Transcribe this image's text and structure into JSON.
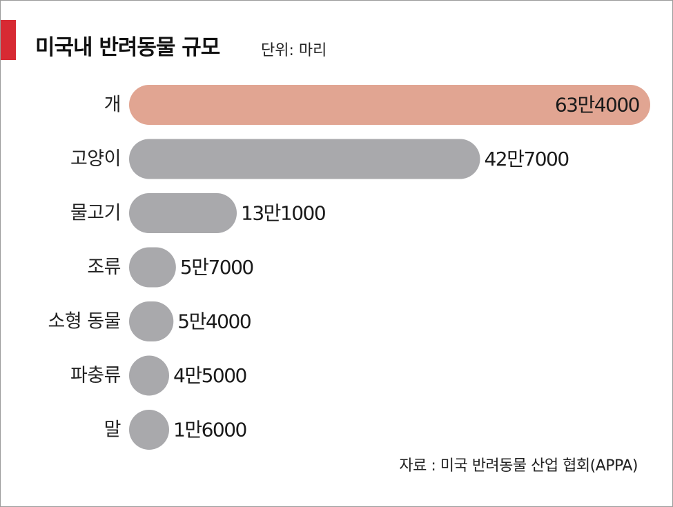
{
  "header": {
    "title": "미국내 반려동물 규모",
    "unit": "단위: 마리"
  },
  "source": "자료 : 미국 반려동물 산업 협회(APPA)",
  "colors": {
    "accent": "#d72a33",
    "highlight_bar": "#e1a592",
    "bar": "#a9a9ac"
  },
  "chart_data": {
    "type": "bar",
    "orientation": "horizontal",
    "title": "미국내 반려동물 규모",
    "unit": "단위: 마리",
    "categories": [
      "개",
      "고양이",
      "물고기",
      "조류",
      "소형 동물",
      "파충류",
      "말"
    ],
    "values": [
      634000,
      427000,
      131000,
      57000,
      54000,
      45000,
      16000
    ],
    "value_labels": [
      "63만4000",
      "42만7000",
      "13만1000",
      "5만7000",
      "5만4000",
      "4만5000",
      "1만6000"
    ],
    "highlight_index": 0,
    "grid": false,
    "legend": "none"
  }
}
